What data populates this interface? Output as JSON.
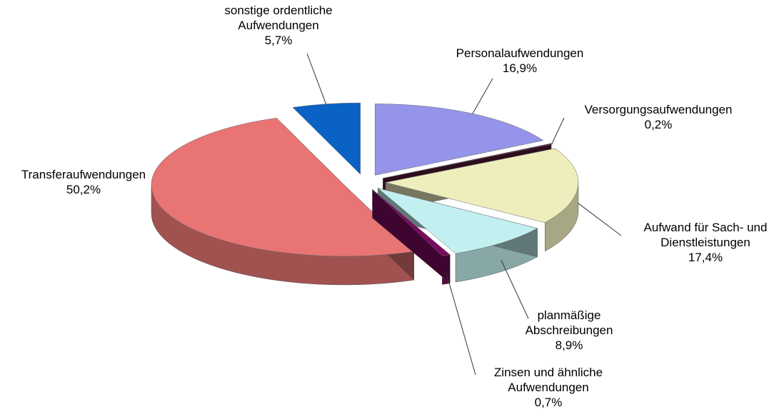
{
  "chart_data": {
    "type": "pie",
    "categories": [
      "Personalaufwendungen",
      "Versorgungsaufwendungen",
      "Aufwand für Sach- und Dienstleistungen",
      "planmäßige Abschreibungen",
      "Zinsen und ähnliche Aufwendungen",
      "Transferaufwendungen",
      "sonstige ordentliche Aufwendungen"
    ],
    "values": [
      16.9,
      0.2,
      17.4,
      8.9,
      0.7,
      50.2,
      5.7
    ],
    "value_labels": [
      "16,9%",
      "0,2%",
      "17,4%",
      "8,9%",
      "0,7%",
      "50,2%",
      "5,7%"
    ],
    "colors": [
      "#9494ea",
      "#5a1a3c",
      "#eeeebd",
      "#c2f0f0",
      "#7a0a60",
      "#e87474",
      "#0a62c4"
    ]
  }
}
